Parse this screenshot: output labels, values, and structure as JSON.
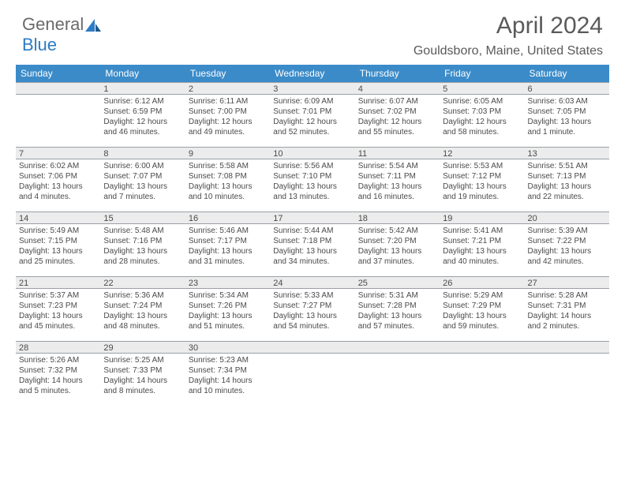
{
  "logo": {
    "textGray": "General",
    "textBlue": "Blue"
  },
  "header": {
    "title": "April 2024",
    "location": "Gouldsboro, Maine, United States"
  },
  "calendar": {
    "weekdays": [
      "Sunday",
      "Monday",
      "Tuesday",
      "Wednesday",
      "Thursday",
      "Friday",
      "Saturday"
    ],
    "header_bg": "#3b8bc9",
    "header_fg": "#ffffff",
    "daynum_bg": "#ececec",
    "border_color": "#9aa0a6",
    "text_color": "#4a4a4a",
    "font_size_cell": 10,
    "weeks": [
      [
        {
          "day": "",
          "lines": []
        },
        {
          "day": "1",
          "lines": [
            "Sunrise: 6:12 AM",
            "Sunset: 6:59 PM",
            "Daylight: 12 hours",
            "and 46 minutes."
          ]
        },
        {
          "day": "2",
          "lines": [
            "Sunrise: 6:11 AM",
            "Sunset: 7:00 PM",
            "Daylight: 12 hours",
            "and 49 minutes."
          ]
        },
        {
          "day": "3",
          "lines": [
            "Sunrise: 6:09 AM",
            "Sunset: 7:01 PM",
            "Daylight: 12 hours",
            "and 52 minutes."
          ]
        },
        {
          "day": "4",
          "lines": [
            "Sunrise: 6:07 AM",
            "Sunset: 7:02 PM",
            "Daylight: 12 hours",
            "and 55 minutes."
          ]
        },
        {
          "day": "5",
          "lines": [
            "Sunrise: 6:05 AM",
            "Sunset: 7:03 PM",
            "Daylight: 12 hours",
            "and 58 minutes."
          ]
        },
        {
          "day": "6",
          "lines": [
            "Sunrise: 6:03 AM",
            "Sunset: 7:05 PM",
            "Daylight: 13 hours",
            "and 1 minute."
          ]
        }
      ],
      [
        {
          "day": "7",
          "lines": [
            "Sunrise: 6:02 AM",
            "Sunset: 7:06 PM",
            "Daylight: 13 hours",
            "and 4 minutes."
          ]
        },
        {
          "day": "8",
          "lines": [
            "Sunrise: 6:00 AM",
            "Sunset: 7:07 PM",
            "Daylight: 13 hours",
            "and 7 minutes."
          ]
        },
        {
          "day": "9",
          "lines": [
            "Sunrise: 5:58 AM",
            "Sunset: 7:08 PM",
            "Daylight: 13 hours",
            "and 10 minutes."
          ]
        },
        {
          "day": "10",
          "lines": [
            "Sunrise: 5:56 AM",
            "Sunset: 7:10 PM",
            "Daylight: 13 hours",
            "and 13 minutes."
          ]
        },
        {
          "day": "11",
          "lines": [
            "Sunrise: 5:54 AM",
            "Sunset: 7:11 PM",
            "Daylight: 13 hours",
            "and 16 minutes."
          ]
        },
        {
          "day": "12",
          "lines": [
            "Sunrise: 5:53 AM",
            "Sunset: 7:12 PM",
            "Daylight: 13 hours",
            "and 19 minutes."
          ]
        },
        {
          "day": "13",
          "lines": [
            "Sunrise: 5:51 AM",
            "Sunset: 7:13 PM",
            "Daylight: 13 hours",
            "and 22 minutes."
          ]
        }
      ],
      [
        {
          "day": "14",
          "lines": [
            "Sunrise: 5:49 AM",
            "Sunset: 7:15 PM",
            "Daylight: 13 hours",
            "and 25 minutes."
          ]
        },
        {
          "day": "15",
          "lines": [
            "Sunrise: 5:48 AM",
            "Sunset: 7:16 PM",
            "Daylight: 13 hours",
            "and 28 minutes."
          ]
        },
        {
          "day": "16",
          "lines": [
            "Sunrise: 5:46 AM",
            "Sunset: 7:17 PM",
            "Daylight: 13 hours",
            "and 31 minutes."
          ]
        },
        {
          "day": "17",
          "lines": [
            "Sunrise: 5:44 AM",
            "Sunset: 7:18 PM",
            "Daylight: 13 hours",
            "and 34 minutes."
          ]
        },
        {
          "day": "18",
          "lines": [
            "Sunrise: 5:42 AM",
            "Sunset: 7:20 PM",
            "Daylight: 13 hours",
            "and 37 minutes."
          ]
        },
        {
          "day": "19",
          "lines": [
            "Sunrise: 5:41 AM",
            "Sunset: 7:21 PM",
            "Daylight: 13 hours",
            "and 40 minutes."
          ]
        },
        {
          "day": "20",
          "lines": [
            "Sunrise: 5:39 AM",
            "Sunset: 7:22 PM",
            "Daylight: 13 hours",
            "and 42 minutes."
          ]
        }
      ],
      [
        {
          "day": "21",
          "lines": [
            "Sunrise: 5:37 AM",
            "Sunset: 7:23 PM",
            "Daylight: 13 hours",
            "and 45 minutes."
          ]
        },
        {
          "day": "22",
          "lines": [
            "Sunrise: 5:36 AM",
            "Sunset: 7:24 PM",
            "Daylight: 13 hours",
            "and 48 minutes."
          ]
        },
        {
          "day": "23",
          "lines": [
            "Sunrise: 5:34 AM",
            "Sunset: 7:26 PM",
            "Daylight: 13 hours",
            "and 51 minutes."
          ]
        },
        {
          "day": "24",
          "lines": [
            "Sunrise: 5:33 AM",
            "Sunset: 7:27 PM",
            "Daylight: 13 hours",
            "and 54 minutes."
          ]
        },
        {
          "day": "25",
          "lines": [
            "Sunrise: 5:31 AM",
            "Sunset: 7:28 PM",
            "Daylight: 13 hours",
            "and 57 minutes."
          ]
        },
        {
          "day": "26",
          "lines": [
            "Sunrise: 5:29 AM",
            "Sunset: 7:29 PM",
            "Daylight: 13 hours",
            "and 59 minutes."
          ]
        },
        {
          "day": "27",
          "lines": [
            "Sunrise: 5:28 AM",
            "Sunset: 7:31 PM",
            "Daylight: 14 hours",
            "and 2 minutes."
          ]
        }
      ],
      [
        {
          "day": "28",
          "lines": [
            "Sunrise: 5:26 AM",
            "Sunset: 7:32 PM",
            "Daylight: 14 hours",
            "and 5 minutes."
          ]
        },
        {
          "day": "29",
          "lines": [
            "Sunrise: 5:25 AM",
            "Sunset: 7:33 PM",
            "Daylight: 14 hours",
            "and 8 minutes."
          ]
        },
        {
          "day": "30",
          "lines": [
            "Sunrise: 5:23 AM",
            "Sunset: 7:34 PM",
            "Daylight: 14 hours",
            "and 10 minutes."
          ]
        },
        {
          "day": "",
          "lines": []
        },
        {
          "day": "",
          "lines": []
        },
        {
          "day": "",
          "lines": []
        },
        {
          "day": "",
          "lines": []
        }
      ]
    ]
  }
}
